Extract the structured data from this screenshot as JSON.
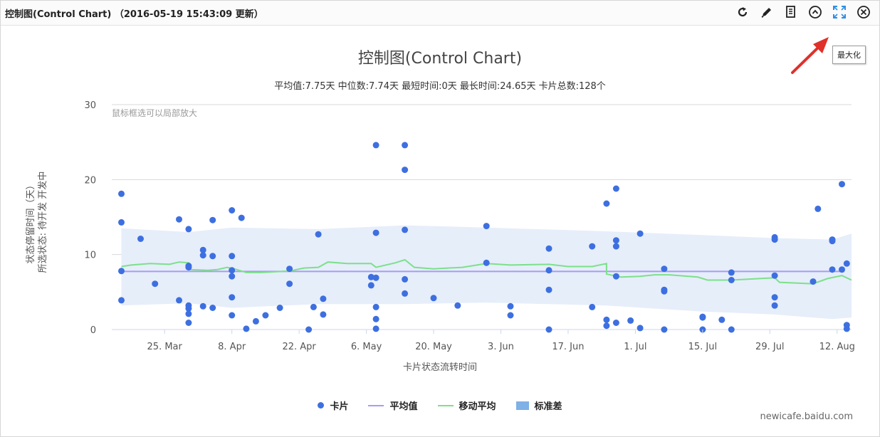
{
  "header": {
    "title": "控制图(Control Chart) （2016-05-19 15:43:09 更新）"
  },
  "toolbar": {
    "icons": [
      "refresh-icon",
      "edit-icon",
      "document-icon",
      "collapse-icon",
      "maximize-icon",
      "close-icon"
    ],
    "maximize_tooltip": "最大化"
  },
  "chart": {
    "hint": "鼠标框选可以局部放大",
    "credit": "newicafe.baidu.com"
  },
  "legend": {
    "cards": "卡片",
    "mean": "平均值",
    "moving_avg": "移动平均",
    "stddev": "标准差"
  },
  "colors": {
    "points": "#3d6fe0",
    "mean": "#a89cf0",
    "moving_avg": "#7ce08a",
    "band": "#e6eefa",
    "arrow": "#e0302a"
  },
  "chart_data": {
    "type": "scatter",
    "title": "控制图(Control Chart)",
    "subtitle": "平均值:7.75天 中位数:7.74天 最短时间:0天 最长时间:24.65天 卡片总数:128个",
    "xlabel": "卡片状态流转时间",
    "ylabel_lines": [
      "状态停留时间（天）",
      "所选状态: 待开发 开发中"
    ],
    "ylim": [
      0,
      30
    ],
    "yticks": [
      "0",
      "10",
      "20",
      "30"
    ],
    "xticks": [
      {
        "label": "25. Mar",
        "date": "2016-03-25"
      },
      {
        "label": "8. Apr",
        "date": "2016-04-08"
      },
      {
        "label": "22. Apr",
        "date": "2016-04-22"
      },
      {
        "label": "6. May",
        "date": "2016-05-06"
      },
      {
        "label": "20. May",
        "date": "2016-05-20"
      },
      {
        "label": "3. Jun",
        "date": "2016-06-03"
      },
      {
        "label": "17. Jun",
        "date": "2016-06-17"
      },
      {
        "label": "1. Jul",
        "date": "2016-07-01"
      },
      {
        "label": "15. Jul",
        "date": "2016-07-15"
      },
      {
        "label": "29. Jul",
        "date": "2016-07-29"
      },
      {
        "label": "12. Aug",
        "date": "2016-08-12"
      }
    ],
    "xrange": [
      "2016-03-14",
      "2016-08-15"
    ],
    "mean": 7.75,
    "points": [
      [
        "2016-03-16",
        18.1
      ],
      [
        "2016-03-16",
        14.3
      ],
      [
        "2016-03-16",
        7.8
      ],
      [
        "2016-03-16",
        3.9
      ],
      [
        "2016-03-20",
        12.1
      ],
      [
        "2016-03-23",
        6.1
      ],
      [
        "2016-03-28",
        14.7
      ],
      [
        "2016-03-28",
        3.9
      ],
      [
        "2016-03-30",
        13.4
      ],
      [
        "2016-03-30",
        8.5
      ],
      [
        "2016-03-30",
        8.3
      ],
      [
        "2016-03-30",
        3.2
      ],
      [
        "2016-03-30",
        2.8
      ],
      [
        "2016-03-30",
        2.1
      ],
      [
        "2016-03-30",
        0.9
      ],
      [
        "2016-04-02",
        10.6
      ],
      [
        "2016-04-02",
        9.9
      ],
      [
        "2016-04-02",
        3.1
      ],
      [
        "2016-04-04",
        14.6
      ],
      [
        "2016-04-04",
        9.8
      ],
      [
        "2016-04-04",
        2.9
      ],
      [
        "2016-04-08",
        15.9
      ],
      [
        "2016-04-08",
        9.8
      ],
      [
        "2016-04-08",
        7.9
      ],
      [
        "2016-04-08",
        7.1
      ],
      [
        "2016-04-08",
        4.3
      ],
      [
        "2016-04-08",
        1.9
      ],
      [
        "2016-04-10",
        14.9
      ],
      [
        "2016-04-11",
        0.1
      ],
      [
        "2016-04-13",
        1.1
      ],
      [
        "2016-04-15",
        1.9
      ],
      [
        "2016-04-18",
        2.9
      ],
      [
        "2016-04-20",
        8.1
      ],
      [
        "2016-04-20",
        6.1
      ],
      [
        "2016-04-24",
        0.0
      ],
      [
        "2016-04-25",
        3.0
      ],
      [
        "2016-04-26",
        12.7
      ],
      [
        "2016-04-27",
        4.1
      ],
      [
        "2016-04-27",
        2.0
      ],
      [
        "2016-05-07",
        5.9
      ],
      [
        "2016-05-07",
        7.0
      ],
      [
        "2016-05-08",
        24.6
      ],
      [
        "2016-05-08",
        12.9
      ],
      [
        "2016-05-08",
        6.9
      ],
      [
        "2016-05-08",
        3.0
      ],
      [
        "2016-05-08",
        1.4
      ],
      [
        "2016-05-08",
        0.1
      ],
      [
        "2016-05-14",
        24.6
      ],
      [
        "2016-05-14",
        21.3
      ],
      [
        "2016-05-14",
        13.3
      ],
      [
        "2016-05-14",
        6.7
      ],
      [
        "2016-05-14",
        4.8
      ],
      [
        "2016-05-20",
        4.2
      ],
      [
        "2016-05-25",
        3.2
      ],
      [
        "2016-05-31",
        13.8
      ],
      [
        "2016-05-31",
        8.9
      ],
      [
        "2016-06-05",
        1.9
      ],
      [
        "2016-06-05",
        3.1
      ],
      [
        "2016-06-13",
        10.8
      ],
      [
        "2016-06-13",
        7.9
      ],
      [
        "2016-06-13",
        5.3
      ],
      [
        "2016-06-13",
        0.0
      ],
      [
        "2016-06-22",
        11.1
      ],
      [
        "2016-06-22",
        3.0
      ],
      [
        "2016-06-25",
        16.8
      ],
      [
        "2016-06-25",
        1.3
      ],
      [
        "2016-06-25",
        0.5
      ],
      [
        "2016-06-27",
        18.8
      ],
      [
        "2016-06-27",
        11.9
      ],
      [
        "2016-06-27",
        11.1
      ],
      [
        "2016-06-27",
        7.1
      ],
      [
        "2016-06-27",
        0.9
      ],
      [
        "2016-06-30",
        1.2
      ],
      [
        "2016-07-02",
        12.8
      ],
      [
        "2016-07-02",
        0.2
      ],
      [
        "2016-07-07",
        8.1
      ],
      [
        "2016-07-07",
        5.3
      ],
      [
        "2016-07-07",
        5.1
      ],
      [
        "2016-07-07",
        0.0
      ],
      [
        "2016-07-15",
        1.7
      ],
      [
        "2016-07-15",
        1.6
      ],
      [
        "2016-07-15",
        0.0
      ],
      [
        "2016-07-19",
        1.3
      ],
      [
        "2016-07-21",
        7.6
      ],
      [
        "2016-07-21",
        6.6
      ],
      [
        "2016-07-21",
        0.0
      ],
      [
        "2016-07-30",
        12.3
      ],
      [
        "2016-07-30",
        12.0
      ],
      [
        "2016-07-30",
        7.2
      ],
      [
        "2016-07-30",
        4.3
      ],
      [
        "2016-07-30",
        3.2
      ],
      [
        "2016-08-07",
        6.4
      ],
      [
        "2016-08-08",
        16.1
      ],
      [
        "2016-08-11",
        12.0
      ],
      [
        "2016-08-11",
        11.8
      ],
      [
        "2016-08-11",
        8.0
      ],
      [
        "2016-08-13",
        19.4
      ],
      [
        "2016-08-13",
        8.0
      ],
      [
        "2016-08-14",
        8.8
      ],
      [
        "2016-08-14",
        0.6
      ],
      [
        "2016-08-14",
        0.1
      ]
    ],
    "moving_average": [
      [
        "2016-03-16",
        8.4
      ],
      [
        "2016-03-18",
        8.6
      ],
      [
        "2016-03-22",
        8.8
      ],
      [
        "2016-03-26",
        8.7
      ],
      [
        "2016-03-28",
        9.0
      ],
      [
        "2016-03-30",
        8.9
      ],
      [
        "2016-03-30",
        8.0
      ],
      [
        "2016-04-03",
        7.9
      ],
      [
        "2016-04-05",
        8.0
      ],
      [
        "2016-04-07",
        8.3
      ],
      [
        "2016-04-09",
        8.0
      ],
      [
        "2016-04-11",
        7.6
      ],
      [
        "2016-04-14",
        7.6
      ],
      [
        "2016-04-20",
        7.8
      ],
      [
        "2016-04-23",
        8.2
      ],
      [
        "2016-04-26",
        8.3
      ],
      [
        "2016-04-28",
        9.0
      ],
      [
        "2016-05-02",
        8.8
      ],
      [
        "2016-05-07",
        8.8
      ],
      [
        "2016-05-08",
        8.3
      ],
      [
        "2016-05-12",
        8.9
      ],
      [
        "2016-05-14",
        9.3
      ],
      [
        "2016-05-16",
        8.3
      ],
      [
        "2016-05-20",
        8.1
      ],
      [
        "2016-05-26",
        8.3
      ],
      [
        "2016-05-31",
        8.8
      ],
      [
        "2016-06-05",
        8.6
      ],
      [
        "2016-06-13",
        8.7
      ],
      [
        "2016-06-17",
        8.4
      ],
      [
        "2016-06-22",
        8.4
      ],
      [
        "2016-06-25",
        8.8
      ],
      [
        "2016-06-25",
        7.4
      ],
      [
        "2016-06-28",
        7.0
      ],
      [
        "2016-07-02",
        7.1
      ],
      [
        "2016-07-05",
        7.3
      ],
      [
        "2016-07-08",
        7.3
      ],
      [
        "2016-07-14",
        7.0
      ],
      [
        "2016-07-16",
        6.6
      ],
      [
        "2016-07-21",
        6.6
      ],
      [
        "2016-07-30",
        6.9
      ],
      [
        "2016-07-31",
        6.3
      ],
      [
        "2016-08-07",
        6.1
      ],
      [
        "2016-08-10",
        6.8
      ],
      [
        "2016-08-13",
        7.2
      ],
      [
        "2016-08-15",
        6.6
      ]
    ],
    "stddev_upper": [
      [
        "2016-03-16",
        13.5
      ],
      [
        "2016-03-30",
        13.0
      ],
      [
        "2016-04-08",
        13.6
      ],
      [
        "2016-04-26",
        13.4
      ],
      [
        "2016-05-14",
        13.9
      ],
      [
        "2016-05-31",
        13.6
      ],
      [
        "2016-06-25",
        13.1
      ],
      [
        "2016-07-15",
        12.6
      ],
      [
        "2016-07-30",
        12.2
      ],
      [
        "2016-08-11",
        12.0
      ],
      [
        "2016-08-15",
        12.8
      ]
    ],
    "stddev_lower": [
      [
        "2016-03-16",
        3.2
      ],
      [
        "2016-03-30",
        3.5
      ],
      [
        "2016-04-08",
        2.9
      ],
      [
        "2016-04-26",
        3.4
      ],
      [
        "2016-05-14",
        3.4
      ],
      [
        "2016-05-31",
        3.6
      ],
      [
        "2016-06-25",
        3.2
      ],
      [
        "2016-07-15",
        2.4
      ],
      [
        "2016-07-30",
        2.0
      ],
      [
        "2016-08-11",
        1.4
      ],
      [
        "2016-08-15",
        1.6
      ]
    ]
  }
}
